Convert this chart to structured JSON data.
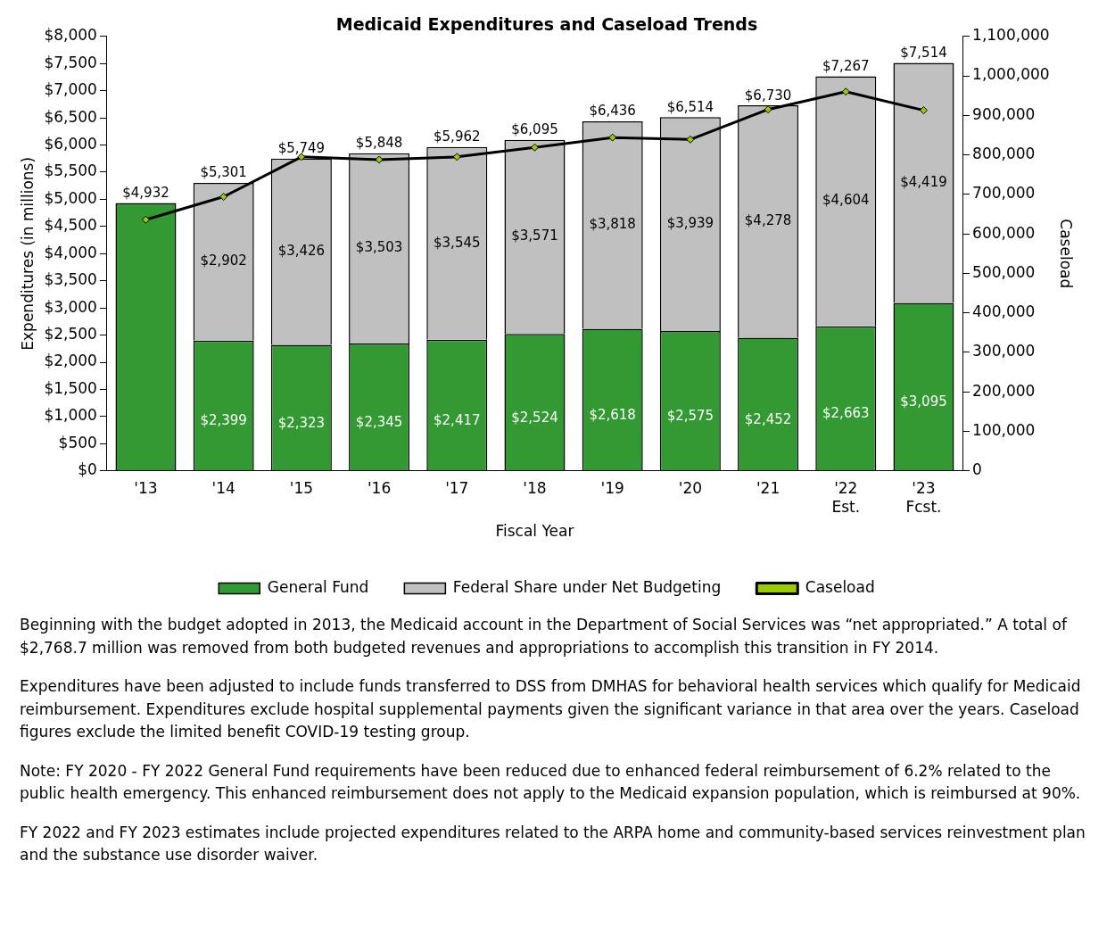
{
  "chart_data": {
    "type": "bar",
    "title": "Medicaid Expenditures and Caseload Trends",
    "xlabel": "Fiscal Year",
    "ylabel": "Expenditures (in millions)",
    "y2label": "Caseload",
    "categories": [
      "'13",
      "'14",
      "'15",
      "'16",
      "'17",
      "'18",
      "'19",
      "'20",
      "'21",
      "'22\nEst.",
      "'23\nFcst."
    ],
    "stacked": true,
    "legend": "bottom",
    "series": [
      {
        "name": "General Fund",
        "color": "#339933",
        "values": [
          4932,
          2399,
          2323,
          2345,
          2417,
          2524,
          2618,
          2575,
          2452,
          2663,
          3095
        ],
        "value_labels": [
          null,
          "$2,399",
          "$2,323",
          "$2,345",
          "$2,417",
          "$2,524",
          "$2,618",
          "$2,575",
          "$2,452",
          "$2,663",
          "$3,095"
        ]
      },
      {
        "name": "Federal Share under Net Budgeting",
        "color": "#c0c0c0",
        "values": [
          null,
          2902,
          3426,
          3503,
          3545,
          3571,
          3818,
          3939,
          4278,
          4604,
          4419
        ],
        "value_labels": [
          null,
          "$2,902",
          "$3,426",
          "$3,503",
          "$3,545",
          "$3,571",
          "$3,818",
          "$3,939",
          "$4,278",
          "$4,604",
          "$4,419"
        ]
      },
      {
        "name": "Caseload",
        "type": "line",
        "axis": "y2",
        "color": "#000000",
        "marker": "diamond",
        "values": [
          636000,
          694000,
          795000,
          788000,
          795000,
          819000,
          844000,
          839000,
          915000,
          960000,
          913000
        ]
      }
    ],
    "totals": [
      "$4,932",
      "$5,301",
      "$5,749",
      "$5,848",
      "$5,962",
      "$6,095",
      "$6,436",
      "$6,514",
      "$6,730",
      "$7,267",
      "$7,514"
    ],
    "ylim": [
      0,
      8000
    ],
    "yticks": [
      {
        "value": 0,
        "label": "$0"
      },
      {
        "value": 500,
        "label": "$500"
      },
      {
        "value": 1000,
        "label": "$1,000"
      },
      {
        "value": 1500,
        "label": "$1,500"
      },
      {
        "value": 2000,
        "label": "$2,000"
      },
      {
        "value": 2500,
        "label": "$2,500"
      },
      {
        "value": 3000,
        "label": "$3,000"
      },
      {
        "value": 3500,
        "label": "$3,500"
      },
      {
        "value": 4000,
        "label": "$4,000"
      },
      {
        "value": 4500,
        "label": "$4,500"
      },
      {
        "value": 5000,
        "label": "$5,000"
      },
      {
        "value": 5500,
        "label": "$5,500"
      },
      {
        "value": 6000,
        "label": "$6,000"
      },
      {
        "value": 6500,
        "label": "$6,500"
      },
      {
        "value": 7000,
        "label": "$7,000"
      },
      {
        "value": 7500,
        "label": "$7,500"
      },
      {
        "value": 8000,
        "label": "$8,000"
      }
    ],
    "y2lim": [
      0,
      1100000
    ],
    "y2ticks": [
      0,
      {
        "value": 100000,
        "label": "100,000"
      },
      {
        "value": 200000,
        "label": "200,000"
      },
      {
        "value": 300000,
        "label": "300,000"
      },
      {
        "value": 400000,
        "label": "400,000"
      },
      {
        "value": 500000,
        "label": "500,000"
      },
      {
        "value": 600000,
        "label": "600,000"
      },
      {
        "value": 700000,
        "label": "700,000"
      },
      {
        "value": 800000,
        "label": "800,000"
      },
      {
        "value": 900000,
        "label": "900,000"
      },
      {
        "value": 1000000,
        "label": "1,000,000"
      },
      {
        "value": 1100000,
        "label": "1,100,000"
      }
    ],
    "annotations": [
      "Beginning with the budget adopted in 2013, the Medicaid account in the Department of Social Services was “net appropriated.” A total of $2,768.7 million was removed from both budgeted revenues and appropriations to accomplish this transition in FY 2014.",
      "Expenditures have been adjusted to include funds transferred to DSS from DMHAS for behavioral health services which qualify for Medicaid reimbursement.  Expenditures exclude hospital supplemental payments given the significant variance in that area over the years. Caseload figures exclude the limited benefit COVID-19 testing group.",
      "Note: FY 2020 - FY 2022 General Fund requirements have been reduced due to enhanced federal reimbursement of 6.2% related to the public health emergency. This enhanced reimbursement does not apply to the Medicaid expansion population, which is reimbursed at 90%.",
      "FY 2022 and FY 2023 estimates include projected expenditures related to the ARPA home and community-based services reinvestment plan and the substance use disorder waiver."
    ]
  }
}
